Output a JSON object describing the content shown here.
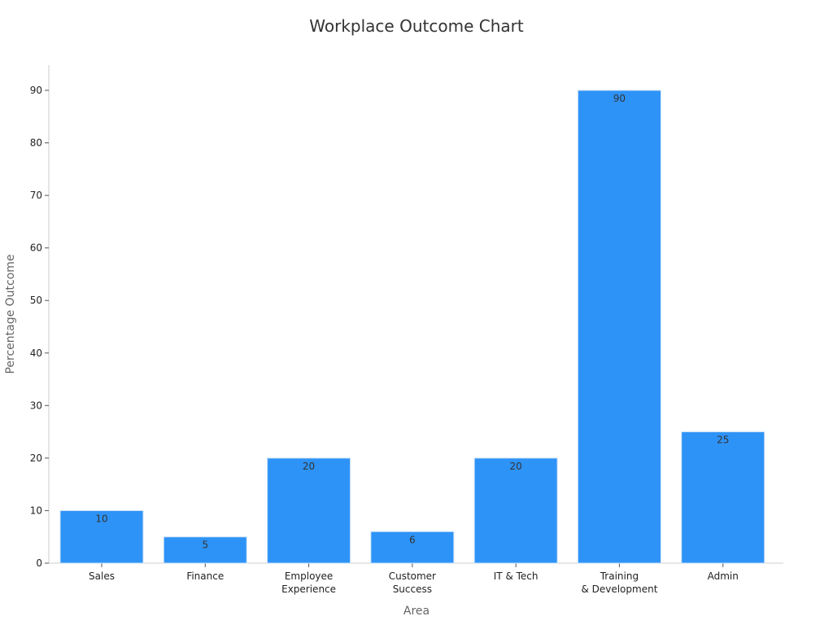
{
  "chart_data": {
    "type": "bar",
    "title": "Workplace Outcome Chart",
    "xlabel": "Area",
    "ylabel": "Percentage Outcome",
    "categories": [
      [
        "Sales"
      ],
      [
        "Finance"
      ],
      [
        "Employee",
        "Experience"
      ],
      [
        "Customer",
        "Success"
      ],
      [
        "IT & Tech"
      ],
      [
        "Training",
        "& Development"
      ],
      [
        "Admin"
      ]
    ],
    "values": [
      10,
      5,
      20,
      6,
      20,
      90,
      25
    ],
    "ylim": [
      0,
      95
    ],
    "yticks": [
      0,
      10,
      20,
      30,
      40,
      50,
      60,
      70,
      80,
      90
    ],
    "grid": false,
    "legend": "none",
    "bar_color": "#2e93f7",
    "bar_edge_color": "#cfe3f7"
  }
}
